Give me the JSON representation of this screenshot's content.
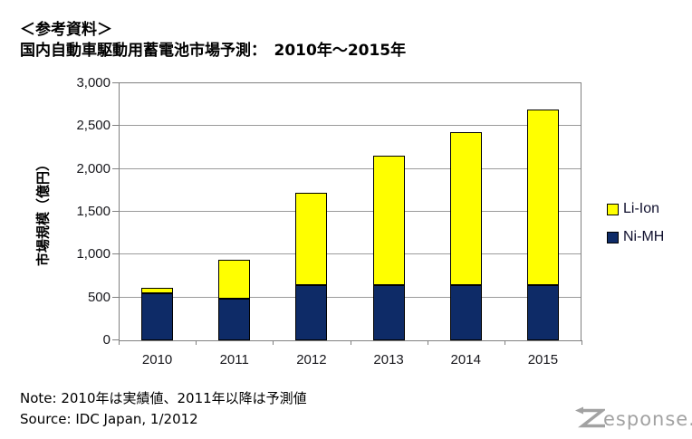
{
  "header": {
    "line1": "＜参考資料＞",
    "line2": "国内自動車駆動用蓄電池市場予測：　2010年～2015年"
  },
  "chart_data": {
    "type": "bar",
    "stacked": true,
    "categories": [
      "2010",
      "2011",
      "2012",
      "2013",
      "2014",
      "2015"
    ],
    "series": [
      {
        "name": "Li-Ion",
        "color": "#ffff00",
        "values": [
          60,
          450,
          1080,
          1510,
          1780,
          2050
        ]
      },
      {
        "name": "Ni-MH",
        "color": "#0e2b67",
        "values": [
          550,
          490,
          640,
          640,
          640,
          640
        ]
      }
    ],
    "totals": [
      610,
      940,
      1720,
      2150,
      2420,
      2690
    ],
    "title": "国内自動車駆動用蓄電池市場予測：　2010年～2015年",
    "xlabel": "",
    "ylabel": "市場規模（億円）",
    "ylim": [
      0,
      3000
    ],
    "ytick_step": 500,
    "ytick_labels": [
      "0",
      "500",
      "1,000",
      "1,500",
      "2,000",
      "2,500",
      "3,000"
    ],
    "grid": true,
    "gridline_color": "#9b9b9b",
    "legend_position": "right"
  },
  "notes": {
    "note": "Note: 2010年は実績値、2011年以降は予測値",
    "source": "Source: IDC Japan, 1/2012"
  },
  "watermark": {
    "text": "Response.",
    "tail": "esponse.",
    "color": "#a2a2a2"
  }
}
